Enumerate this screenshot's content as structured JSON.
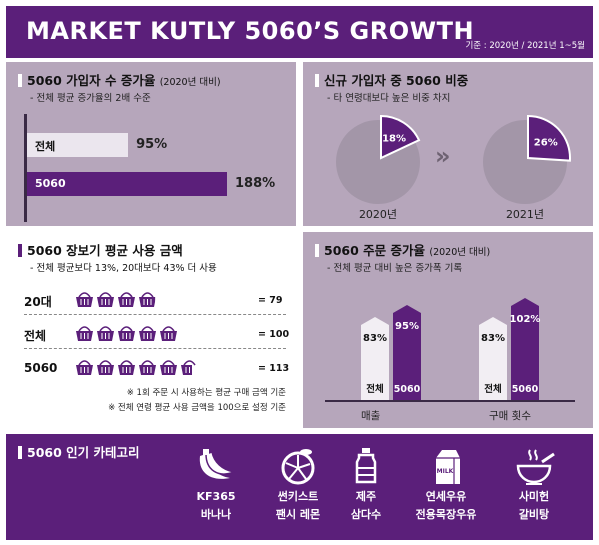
{
  "header": {
    "title": "MARKET KUTLY 5060’S GROWTH",
    "basis": "기준 : 2020년 / 2021년 1~5월"
  },
  "colors": {
    "purple": "#5b1f7a",
    "panel": "#b6a6bb",
    "light": "#ebe6ee"
  },
  "chart_data": [
    {
      "type": "bar",
      "title": "5060 가입자 수 증가율",
      "title_note": "(2020년 대비)",
      "subtitle": "- 전체 평균 증가율의 2배 수준",
      "categories": [
        "전체",
        "5060"
      ],
      "values": [
        95,
        188
      ],
      "value_labels": [
        "95%",
        "188%"
      ]
    },
    {
      "type": "pie",
      "title": "신규 가입자 중 5060 비중",
      "subtitle": "- 타 연령대보다 높은 비중 차지",
      "pies": [
        {
          "label": "2020년",
          "value": 18,
          "value_label": "18%"
        },
        {
          "label": "2021년",
          "value": 26,
          "value_label": "26%"
        }
      ]
    },
    {
      "type": "bar",
      "title": "5060 장보기 평균 사용 금액",
      "subtitle": "- 전체 평균보다 13%, 20대보다 43% 더 사용",
      "categories": [
        "20대",
        "전체",
        "5060"
      ],
      "values": [
        79,
        100,
        113
      ],
      "value_labels": [
        "= 79",
        "= 100",
        "= 113"
      ],
      "notes": [
        "※ 1회 주문 시 사용하는 평균 구매 금액 기준",
        "※ 전체 연령 평균 사용 금액을 100으로 설정 기준"
      ]
    },
    {
      "type": "bar",
      "title": "5060 주문 증가율",
      "title_note": "(2020년 대비)",
      "subtitle": "- 전체 평균 대비 높은 증가폭 기록",
      "categories": [
        "매출",
        "구매 횟수"
      ],
      "series": [
        {
          "name": "전체",
          "values": [
            83,
            83
          ],
          "value_labels": [
            "83%",
            "83%"
          ]
        },
        {
          "name": "5060",
          "values": [
            95,
            102
          ],
          "value_labels": [
            "95%",
            "102%"
          ]
        }
      ]
    }
  ],
  "popular": {
    "title": "5060 인기 카테고리",
    "items": [
      {
        "icon": "banana-icon",
        "line1": "KF365",
        "line2": "바나나"
      },
      {
        "icon": "lemon-icon",
        "line1": "썬키스트",
        "line2": "팬시 레몬"
      },
      {
        "icon": "water-bottle-icon",
        "line1": "제주",
        "line2": "삼다수"
      },
      {
        "icon": "milk-carton-icon",
        "line1": "연세우유",
        "line2": "전용목장우유",
        "badge": "MILK"
      },
      {
        "icon": "soup-bowl-icon",
        "line1": "사미헌",
        "line2": "갈비탕"
      }
    ]
  }
}
